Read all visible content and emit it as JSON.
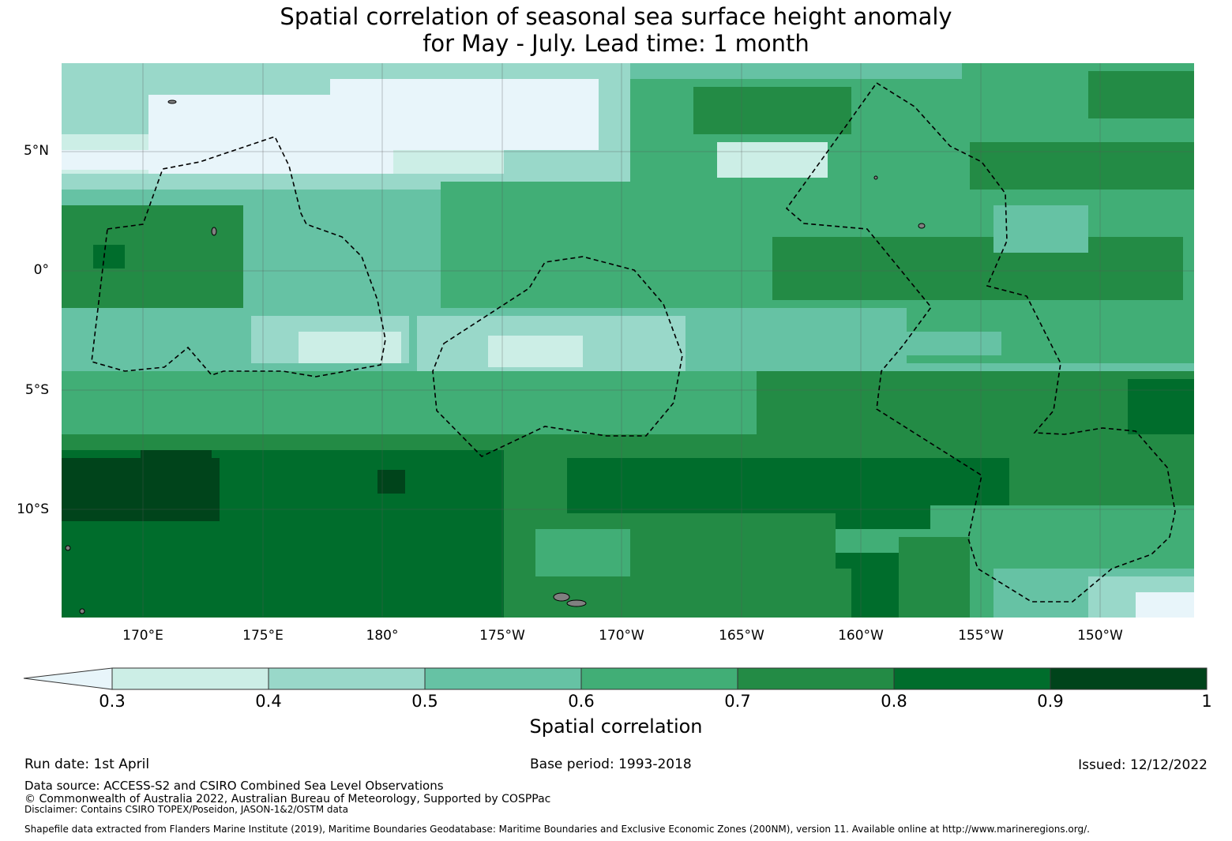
{
  "title": {
    "line1": "Spatial correlation of seasonal sea surface height anomaly",
    "line2": "for May - July. Lead time: 1 month"
  },
  "map": {
    "lat_ticks": [
      "5°N",
      "0°",
      "5°S",
      "10°S"
    ],
    "lon_ticks": [
      "170°E",
      "175°E",
      "180°",
      "175°W",
      "170°W",
      "165°W",
      "160°W",
      "155°W",
      "150°W"
    ],
    "colors": [
      "#e8f5fa",
      "#cceee6",
      "#99d8c9",
      "#66c2a4",
      "#41ae76",
      "#238b45",
      "#006d2c",
      "#00441b"
    ],
    "land_color": "#808080",
    "boundary_style": "dashed black"
  },
  "colorbar": {
    "ticks": [
      "0.3",
      "0.4",
      "0.5",
      "0.6",
      "0.7",
      "0.8",
      "0.9",
      "1"
    ],
    "label": "Spatial correlation"
  },
  "footer": {
    "run_date": "Run date: 1st April",
    "base_period": "Base period: 1993-2018",
    "issued": "Issued: 12/12/2022",
    "data_source": "Data source: ACCESS-S2 and CSIRO Combined Sea Level Observations",
    "copyright": "© Commonwealth of Australia 2022, Australian Bureau of Meteorology, Supported by COSPPac",
    "disclaimer": "Disclaimer: Contains CSIRO TOPEX/Poseidon, JASON-1&2/OSTM data",
    "shapefile": "Shapefile data extracted from Flanders Marine Institute (2019), Maritime Boundaries Geodatabase: Maritime Boundaries and Exclusive Economic Zones (200NM), version 11. Available online at http://www.marineregions.org/."
  }
}
